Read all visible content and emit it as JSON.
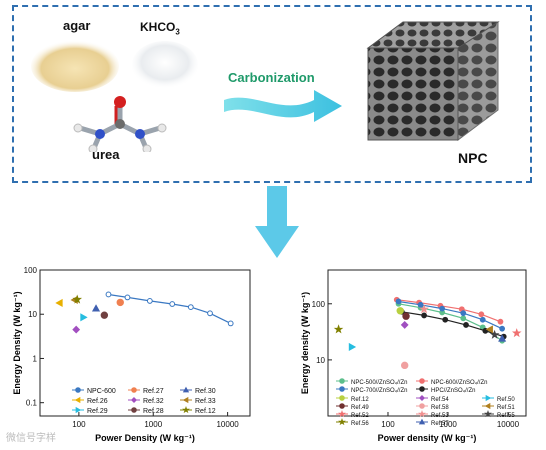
{
  "scheme": {
    "agar_label": "agar",
    "khco3_label": "KHCO",
    "khco3_sub": "3",
    "urea_label": "urea",
    "process_label": "Carbonization",
    "product_label": "NPC"
  },
  "watermark": "微信号字样",
  "colors": {
    "border": "#2f6fb0",
    "arrow": "#5cc9e8",
    "carbonization": "#1f9a6a"
  },
  "chart_data": [
    {
      "type": "scatter",
      "xlabel": "Power Density (W kg⁻¹)",
      "ylabel": "Energy Density (W kg⁻¹)",
      "xscale": "log",
      "yscale": "log",
      "xlim": [
        30,
        20000
      ],
      "ylim": [
        0.05,
        100
      ],
      "xticks": [
        "100",
        "1000",
        "10000"
      ],
      "yticks": [
        "0.1",
        "1",
        "10",
        "100"
      ],
      "legend": "bottom",
      "series": [
        {
          "name": "NPC-600",
          "color": "#3a78c2",
          "marker": "circle",
          "line": true,
          "x": [
            250,
            450,
            900,
            1800,
            3200,
            5800,
            11000
          ],
          "y": [
            28,
            24,
            20,
            17,
            14.5,
            10.5,
            6.2
          ]
        },
        {
          "name": "Ref.26",
          "color": "#e8b000",
          "marker": "triangle-left",
          "x": [
            55
          ],
          "y": [
            18
          ]
        },
        {
          "name": "Ref.29",
          "color": "#26bde0",
          "marker": "triangle-right",
          "x": [
            115
          ],
          "y": [
            8.5
          ]
        },
        {
          "name": "Ref.27",
          "color": "#f08050",
          "marker": "circle",
          "x": [
            360
          ],
          "y": [
            18.5
          ]
        },
        {
          "name": "Ref.32",
          "color": "#a24fc0",
          "marker": "diamond",
          "x": [
            92
          ],
          "y": [
            4.5
          ]
        },
        {
          "name": "Ref.28",
          "color": "#704040",
          "marker": "circle",
          "x": [
            220
          ],
          "y": [
            9.5
          ]
        },
        {
          "name": "Ref.30",
          "color": "#4060b0",
          "marker": "triangle",
          "x": [
            170
          ],
          "y": [
            13.5
          ]
        },
        {
          "name": "Ref.33",
          "color": "#b08020",
          "marker": "triangle-left",
          "x": [
            88
          ],
          "y": [
            21
          ]
        },
        {
          "name": "Ref.12",
          "color": "#808000",
          "marker": "star",
          "x": [
            95
          ],
          "y": [
            21.5
          ]
        }
      ]
    },
    {
      "type": "line",
      "xlabel": "Power density (W kg⁻¹)",
      "ylabel": "Energy density (W kg⁻¹)",
      "xscale": "log",
      "yscale": "log",
      "xlim": [
        10,
        20000
      ],
      "ylim": [
        1,
        400
      ],
      "xticks": [
        "100",
        "1000",
        "10000"
      ],
      "yticks": [
        "10",
        "100"
      ],
      "legend": "bottom",
      "series": [
        {
          "name": "NPC-500//ZnSO₄//Zn",
          "color": "#5dbf8c",
          "marker": "circle",
          "line": true,
          "x": [
            150,
            350,
            800,
            1800,
            3800,
            8000
          ],
          "y": [
            100,
            85,
            70,
            55,
            38,
            22
          ]
        },
        {
          "name": "NPC-600//ZnSO₄//Zn",
          "color": "#f07070",
          "marker": "circle",
          "line": true,
          "x": [
            140,
            330,
            750,
            1700,
            3600,
            7500
          ],
          "y": [
            118,
            105,
            92,
            80,
            65,
            48
          ]
        },
        {
          "name": "NPC-700//ZnSO₄//Zn",
          "color": "#3a78c2",
          "marker": "circle",
          "line": true,
          "x": [
            150,
            350,
            800,
            1800,
            3800,
            8000
          ],
          "y": [
            110,
            96,
            82,
            68,
            52,
            36
          ]
        },
        {
          "name": "HPC//ZnSO₄//Zn",
          "color": "#222222",
          "marker": "circle",
          "line": true,
          "x": [
            170,
            400,
            900,
            2000,
            4200,
            8500
          ],
          "y": [
            72,
            62,
            52,
            42,
            33,
            26
          ]
        },
        {
          "name": "Ref.12",
          "color": "#b8d040",
          "marker": "circle",
          "x": [
            160
          ],
          "y": [
            75
          ]
        },
        {
          "name": "Ref.49",
          "color": "#703030",
          "marker": "circle",
          "x": [
            200
          ],
          "y": [
            60
          ]
        },
        {
          "name": "Ref.50",
          "color": "#26bde0",
          "marker": "triangle-right",
          "x": [
            25
          ],
          "y": [
            17
          ]
        },
        {
          "name": "Ref.51",
          "color": "#b08020",
          "marker": "triangle-left",
          "x": [
            5000
          ],
          "y": [
            35
          ]
        },
        {
          "name": "Ref.52",
          "color": "#f07070",
          "marker": "star",
          "x": [
            14000
          ],
          "y": [
            30
          ]
        },
        {
          "name": "Ref.53",
          "color": "#f09090",
          "marker": "star",
          "x": [
            400
          ],
          "y": [
            80
          ]
        },
        {
          "name": "Ref.54",
          "color": "#a050c0",
          "marker": "diamond",
          "x": [
            190
          ],
          "y": [
            42
          ]
        },
        {
          "name": "Ref.55",
          "color": "#444444",
          "marker": "star",
          "x": [
            6000
          ],
          "y": [
            28
          ]
        },
        {
          "name": "Ref.56",
          "color": "#808000",
          "marker": "star",
          "x": [
            15
          ],
          "y": [
            35
          ]
        },
        {
          "name": "Ref.57",
          "color": "#4060b0",
          "marker": "triangle",
          "x": [
            8000
          ],
          "y": [
            24
          ]
        },
        {
          "name": "Ref.58",
          "color": "#f0a0a0",
          "marker": "circle",
          "x": [
            190
          ],
          "y": [
            8
          ]
        }
      ]
    }
  ]
}
